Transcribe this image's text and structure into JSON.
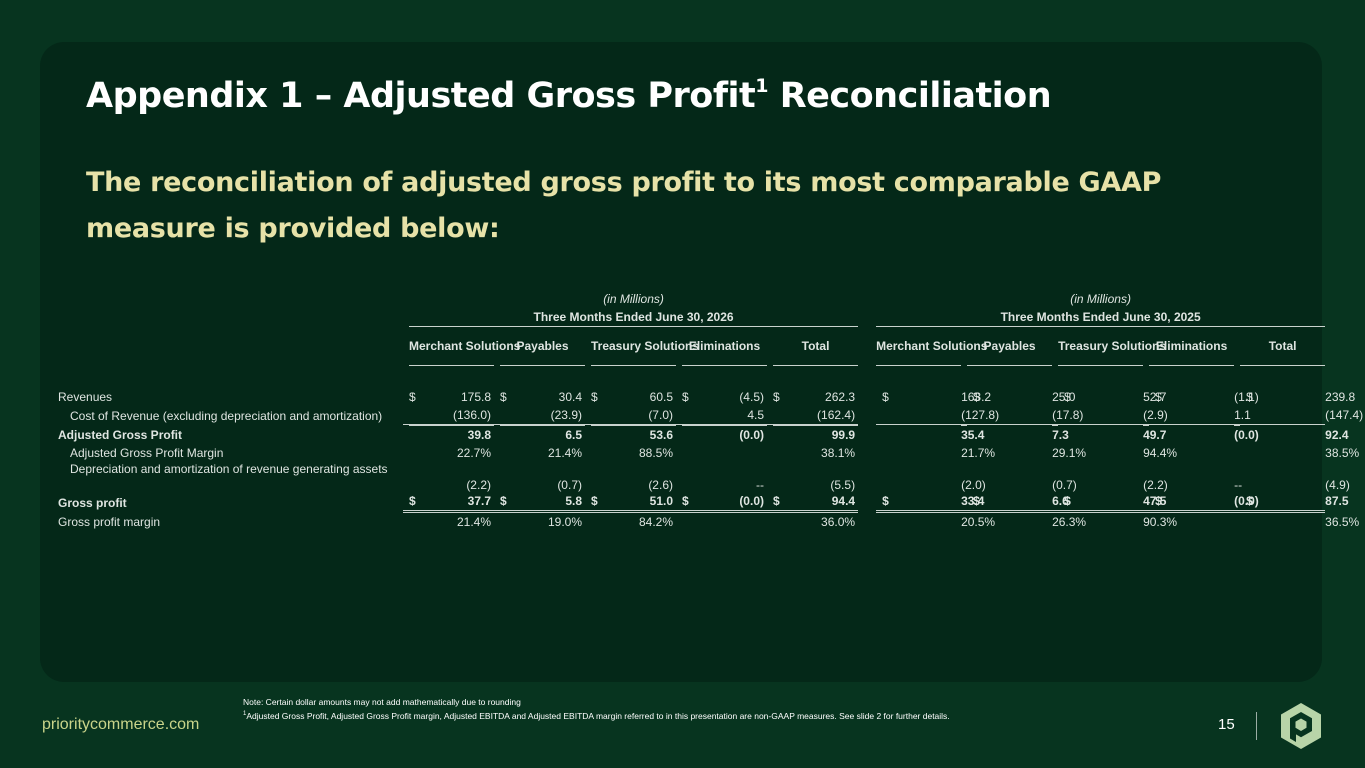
{
  "slide": {
    "title": "Appendix 1 – Adjusted Gross Profit",
    "title_sup": "1",
    "title_rest": " Reconciliation",
    "subtitle": "The reconciliation of adjusted gross profit to its most comparable GAAP measure is provided below:"
  },
  "table": {
    "periods": [
      {
        "units": "(in Millions)",
        "label": "Three Months Ended June 30, 2026"
      },
      {
        "units": "(in Millions)",
        "label": "Three Months Ended June 30, 2025"
      }
    ],
    "columns": [
      "Merchant Solutions",
      "Payables",
      "Treasury Solutions",
      "Eliminations",
      "Total"
    ],
    "rows": [
      {
        "label": "Revenues",
        "dollar": true,
        "v2026": [
          "175.8",
          "30.4",
          "60.5",
          "(4.5)",
          "262.3"
        ],
        "v2025": [
          "163.2",
          "25.0",
          "52.7",
          "(1.1)",
          "239.8"
        ]
      },
      {
        "label": "Cost of Revenue (excluding depreciation and amortization)",
        "v2026": [
          "(136.0)",
          "(23.9)",
          "(7.0)",
          "4.5",
          "(162.4)"
        ],
        "v2025": [
          "(127.8)",
          "(17.8)",
          "(2.9)",
          "1.1",
          "(147.4)"
        ]
      },
      {
        "label": "Adjusted Gross Profit",
        "v2026": [
          "39.8",
          "6.5",
          "53.6",
          "(0.0)",
          "99.9"
        ],
        "v2025": [
          "35.4",
          "7.3",
          "49.7",
          "(0.0)",
          "92.4"
        ]
      },
      {
        "label": "Adjusted Gross Profit Margin",
        "v2026": [
          "22.7%",
          "21.4%",
          "88.5%",
          "",
          "38.1%"
        ],
        "v2025": [
          "21.7%",
          "29.1%",
          "94.4%",
          "",
          "38.5%"
        ]
      },
      {
        "label": "Depreciation and amortization of revenue generating assets",
        "v2026": [
          "(2.2)",
          "(0.7)",
          "(2.6)",
          "--",
          "(5.5)"
        ],
        "v2025": [
          "(2.0)",
          "(0.7)",
          "(2.2)",
          "--",
          "(4.9)"
        ]
      },
      {
        "label": "Gross profit",
        "dollar": true,
        "v2026": [
          "37.7",
          "5.8",
          "51.0",
          "(0.0)",
          "94.4"
        ],
        "v2025": [
          "33.4",
          "6.6",
          "47.5",
          "(0.0)",
          "87.5"
        ]
      },
      {
        "label": "Gross profit margin",
        "v2026": [
          "21.4%",
          "19.0%",
          "84.2%",
          "",
          "36.0%"
        ],
        "v2025": [
          "20.5%",
          "26.3%",
          "90.3%",
          "",
          "36.5%"
        ]
      }
    ]
  },
  "footer": {
    "note": "Note: Certain dollar amounts may not add mathematically due to rounding",
    "footnote_mark": "1",
    "footnote": "Adjusted Gross Profit, Adjusted Gross Profit margin, Adjusted EBITDA and Adjusted EBITDA margin referred to in this presentation are non-GAAP measures. See slide 2 for further details.",
    "website": "prioritycommerce.com",
    "page_number": "15",
    "logo_icon": "priority-logo-icon"
  },
  "colors": {
    "background": "#07341f",
    "card": "#042818",
    "subtitle": "#e7e2a8",
    "website": "#c9d48a",
    "logo": "#b8d4a8"
  }
}
